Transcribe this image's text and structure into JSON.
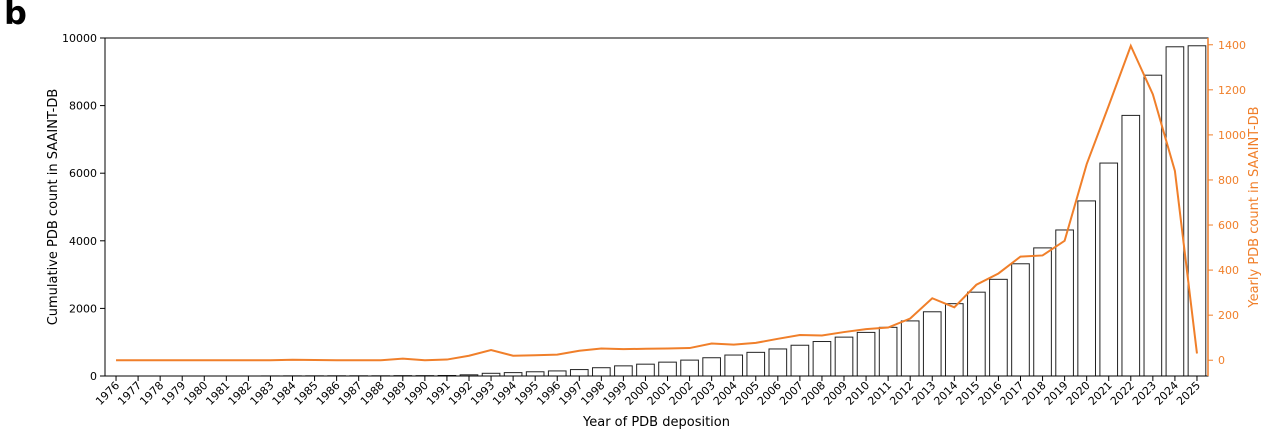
{
  "panel_label": "b",
  "colors": {
    "bars_edge": "#222222",
    "bars_fill": "#ffffff",
    "line": "#f07f2a",
    "axis": "#000000"
  },
  "chart_data": {
    "type": "bar",
    "title": "",
    "xlabel": "Year of PDB deposition",
    "ylabel": "Cumulative PDB count in SAAINT-DB",
    "y2label": "Yearly PDB count in SAAINT-DB",
    "ylim": [
      0,
      10000
    ],
    "y2lim": [
      -70,
      1430
    ],
    "yticks": [
      0,
      2000,
      4000,
      6000,
      8000,
      10000
    ],
    "y2ticks": [
      0,
      200,
      400,
      600,
      800,
      1000,
      1200,
      1400
    ],
    "grid": false,
    "legend": "none",
    "categories": [
      "1976",
      "1977",
      "1978",
      "1979",
      "1980",
      "1981",
      "1982",
      "1983",
      "1984",
      "1985",
      "1986",
      "1987",
      "1988",
      "1989",
      "1990",
      "1991",
      "1992",
      "1993",
      "1994",
      "1995",
      "1996",
      "1997",
      "1998",
      "1999",
      "2000",
      "2001",
      "2002",
      "2003",
      "2004",
      "2005",
      "2006",
      "2007",
      "2008",
      "2009",
      "2010",
      "2011",
      "2012",
      "2013",
      "2014",
      "2015",
      "2016",
      "2017",
      "2018",
      "2019",
      "2020",
      "2021",
      "2022",
      "2023",
      "2024",
      "2025"
    ],
    "series": [
      {
        "kind": "bar",
        "axis": "left",
        "values": [
          0,
          0,
          0,
          0,
          0,
          0,
          0,
          2,
          4,
          5,
          6,
          6,
          6,
          10,
          10,
          15,
          35,
          80,
          100,
          125,
          150,
          190,
          245,
          300,
          350,
          410,
          470,
          540,
          620,
          700,
          800,
          910,
          1020,
          1150,
          1290,
          1440,
          1630,
          1900,
          2140,
          2480,
          2860,
          3320,
          3790,
          4320,
          5180,
          6300,
          7710,
          8900,
          9740,
          9770
        ]
      },
      {
        "kind": "line",
        "axis": "right",
        "values": [
          0,
          0,
          0,
          0,
          0,
          0,
          0,
          0,
          2,
          1,
          0,
          0,
          0,
          7,
          0,
          3,
          20,
          45,
          20,
          22,
          25,
          42,
          52,
          49,
          51,
          52,
          54,
          74,
          69,
          77,
          95,
          112,
          110,
          125,
          138,
          145,
          185,
          275,
          235,
          335,
          385,
          460,
          465,
          530,
          870,
          1130,
          1395,
          1180,
          840,
          30
        ]
      }
    ]
  }
}
